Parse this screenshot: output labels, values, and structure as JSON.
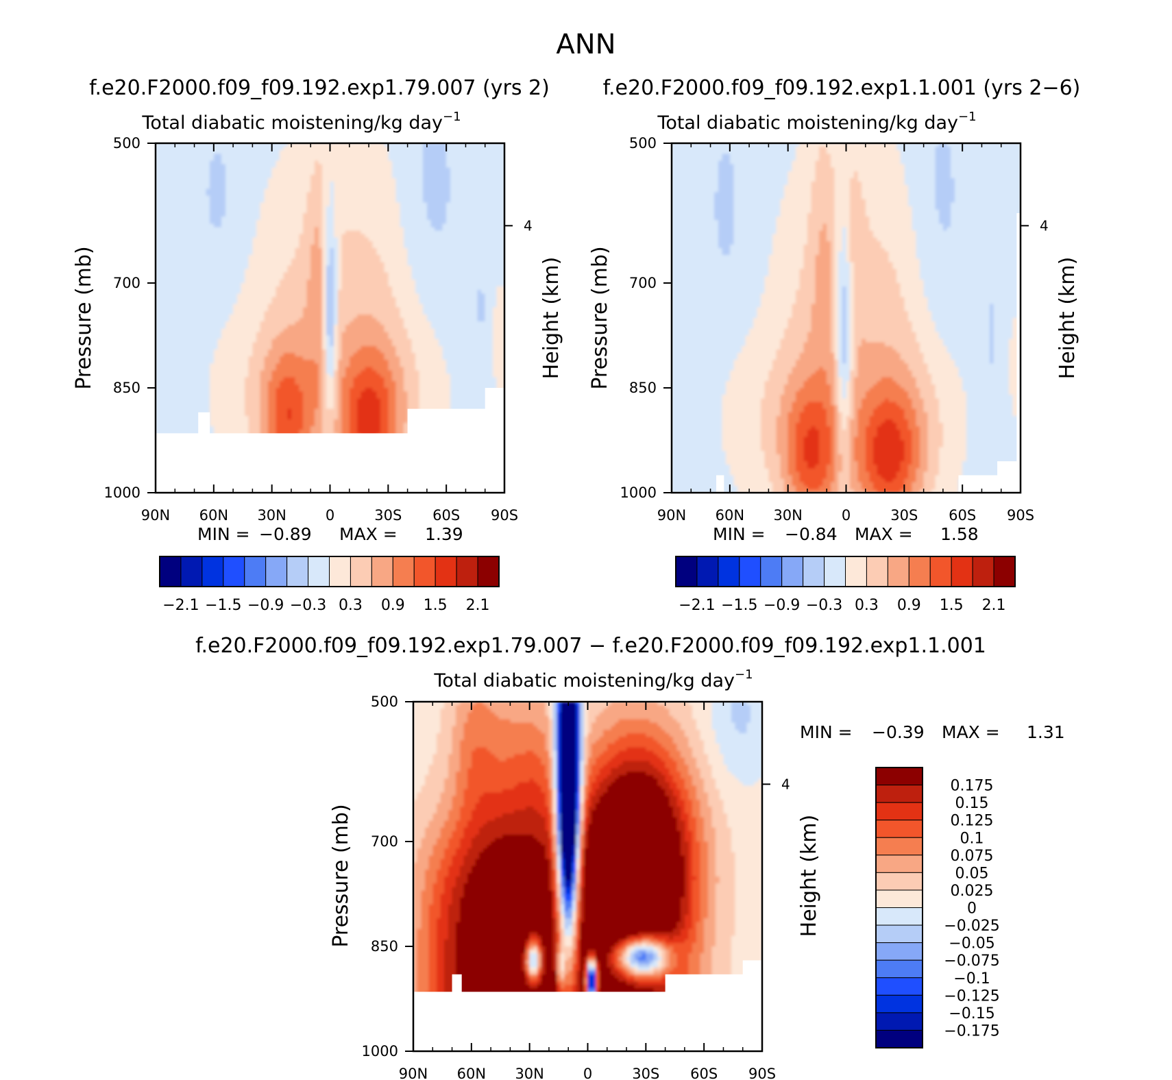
{
  "figure": {
    "title": "ANN",
    "units_label": "Total diabatic moistening/kg day",
    "units_exp": "−1"
  },
  "chart_data": [
    {
      "id": "panel-1",
      "type": "heatmap",
      "case_title": "f.e20.F2000.f09_f09.192.exp1.79.007 (yrs 2)",
      "subtitle": "Total diabatic moistening/kg day⁻¹",
      "xlabel": "",
      "ylabel": "Pressure (mb)",
      "y2label": "Height (km)",
      "x_ticks": [
        "90N",
        "60N",
        "30N",
        "0",
        "30S",
        "60S",
        "90S"
      ],
      "x_range": [
        90,
        -90
      ],
      "y_ticks": [
        500,
        700,
        850,
        1000
      ],
      "y_range": [
        500,
        1000
      ],
      "y2_ticks": [
        4
      ],
      "min_label": "MIN =",
      "min": "−0.89",
      "max_label": "MAX =",
      "max": "1.39",
      "levels": [
        -2.4,
        -2.1,
        -1.8,
        -1.5,
        -1.2,
        -0.9,
        -0.6,
        -0.3,
        0,
        0.3,
        0.6,
        0.9,
        1.2,
        1.5,
        1.8,
        2.1,
        2.4
      ],
      "colorbar_labels": [
        "−2.1",
        "−1.5",
        "−0.9",
        "−0.3",
        "0.3",
        "0.9",
        "1.5",
        "2.1"
      ],
      "surface_cutoff": 915
    },
    {
      "id": "panel-2",
      "type": "heatmap",
      "case_title": "f.e20.F2000.f09_f09.192.exp1.1.001 (yrs 2−6)",
      "subtitle": "Total diabatic moistening/kg day⁻¹",
      "xlabel": "",
      "ylabel": "Pressure (mb)",
      "y2label": "Height (km)",
      "x_ticks": [
        "90N",
        "60N",
        "30N",
        "0",
        "30S",
        "60S",
        "90S"
      ],
      "x_range": [
        90,
        -90
      ],
      "y_ticks": [
        500,
        700,
        850,
        1000
      ],
      "y_range": [
        500,
        1000
      ],
      "y2_ticks": [
        4
      ],
      "min_label": "MIN =",
      "min": "−0.84",
      "max_label": "MAX =",
      "max": "1.58",
      "levels": [
        -2.4,
        -2.1,
        -1.8,
        -1.5,
        -1.2,
        -0.9,
        -0.6,
        -0.3,
        0,
        0.3,
        0.6,
        0.9,
        1.2,
        1.5,
        1.8,
        2.1,
        2.4
      ],
      "colorbar_labels": [
        "−2.1",
        "−1.5",
        "−0.9",
        "−0.3",
        "0.3",
        "0.9",
        "1.5",
        "2.1"
      ],
      "surface_cutoff": 1000
    },
    {
      "id": "panel-diff",
      "type": "heatmap",
      "case_title": "f.e20.F2000.f09_f09.192.exp1.79.007 − f.e20.F2000.f09_f09.192.exp1.1.001",
      "subtitle": "Total diabatic moistening/kg day⁻¹",
      "xlabel": "",
      "ylabel": "Pressure (mb)",
      "y2label": "Height (km)",
      "x_ticks": [
        "90N",
        "60N",
        "30N",
        "0",
        "30S",
        "60S",
        "90S"
      ],
      "x_range": [
        90,
        -90
      ],
      "y_ticks": [
        500,
        700,
        850,
        1000
      ],
      "y_range": [
        500,
        1000
      ],
      "y2_ticks": [
        4
      ],
      "min_label": "MIN =",
      "min": "−0.39",
      "max_label": "MAX =",
      "max": "1.31",
      "levels": [
        -0.2,
        -0.175,
        -0.15,
        -0.125,
        -0.1,
        -0.075,
        -0.05,
        -0.025,
        0,
        0.025,
        0.05,
        0.075,
        0.1,
        0.125,
        0.15,
        0.175,
        0.2
      ],
      "colorbar_labels": [
        "0.175",
        "0.15",
        "0.125",
        "0.1",
        "0.075",
        "0.05",
        "0.025",
        "0",
        "−0.025",
        "−0.05",
        "−0.075",
        "−0.1",
        "−0.125",
        "−0.15",
        "−0.175"
      ],
      "surface_cutoff": 915
    }
  ],
  "colors": {
    "palette": [
      "#00007f",
      "#0019b2",
      "#0033e0",
      "#1f4fff",
      "#4d7cf5",
      "#86a8f7",
      "#b5cdf7",
      "#d8e8fa",
      "#fde8d9",
      "#fcccb4",
      "#f8a784",
      "#f57e50",
      "#f2562b",
      "#e33214",
      "#be200e",
      "#8c0000"
    ]
  }
}
